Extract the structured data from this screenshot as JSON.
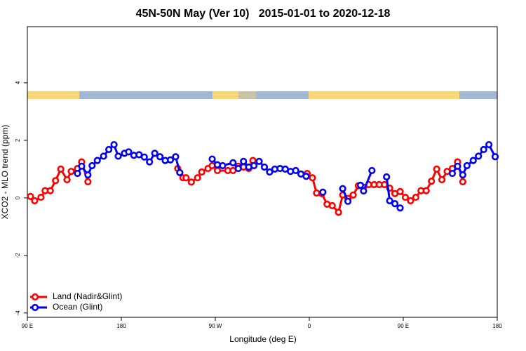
{
  "chart_data": {
    "type": "line",
    "title": "45N-50N May (Ver 10)   2015-01-01 to 2020-12-18",
    "x_label": "Longitude (deg E)",
    "y_label": "XCO2 - MLO trend (ppm)",
    "xlim": [
      90,
      540
    ],
    "xticks": [
      {
        "value": 90,
        "label": "90 E"
      },
      {
        "value": 180,
        "label": "180"
      },
      {
        "value": 270,
        "label": "90 W"
      },
      {
        "value": 360,
        "label": "0"
      },
      {
        "value": 450,
        "label": "90 E"
      },
      {
        "value": 540,
        "label": "180"
      }
    ],
    "ylim": [
      -4.15,
      5.95
    ],
    "yticks": [
      -4,
      -2,
      0,
      2,
      4
    ],
    "legend": "bottom left",
    "series": [
      {
        "name": "Land (Nadir&Glint)",
        "color": "#ff0000",
        "x": [
          93,
          97,
          103,
          107,
          112,
          117,
          122,
          128,
          132,
          138,
          142,
          148,
          null,
          234,
          239,
          242,
          247,
          253,
          257,
          263,
          267,
          272,
          282,
          287,
          292,
          297,
          302,
          306,
          null,
          358,
          363,
          367,
          372,
          377,
          382,
          388,
          392,
          397,
          402,
          407,
          412,
          417,
          422,
          427,
          432,
          437,
          442,
          447,
          452,
          457,
          462,
          467,
          472,
          477,
          482,
          487,
          492,
          497,
          502,
          507
        ],
        "values": [
          0.05,
          -0.1,
          0.02,
          0.25,
          0.25,
          0.6,
          1.0,
          0.63,
          0.92,
          1.02,
          1.25,
          0.56,
          null,
          1.02,
          0.7,
          0.7,
          0.55,
          0.7,
          0.9,
          1.02,
          1.12,
          0.95,
          0.95,
          0.95,
          1.1,
          1.07,
          1.02,
          1.3,
          null,
          0.85,
          0.7,
          0.17,
          0.15,
          -0.22,
          -0.27,
          -0.5,
          0.1,
          -0.02,
          0.1,
          0.42,
          0.37,
          0.46,
          0.46,
          0.46,
          0.46,
          0.34,
          0.15,
          0.22,
          0.02,
          -0.1,
          0.02,
          0.25,
          0.25,
          0.58,
          1.0,
          0.63,
          0.92,
          1.02,
          1.25,
          0.56
        ]
      },
      {
        "name": "Ocean (Glint)",
        "color": "#0000ee",
        "x": [
          138,
          142,
          148,
          152,
          157,
          163,
          168,
          173,
          177,
          183,
          187,
          192,
          197,
          202,
          207,
          212,
          217,
          222,
          227,
          232,
          236,
          null,
          267,
          272,
          277,
          287,
          292,
          297,
          302,
          307,
          312,
          317,
          322,
          327,
          332,
          337,
          342,
          347,
          352,
          357,
          null,
          373,
          null,
          392,
          397,
          null,
          409,
          412,
          420,
          null,
          434,
          437,
          442,
          447,
          null,
          497,
          502,
          507,
          511,
          517,
          522,
          527,
          532,
          538
        ],
        "values": [
          0.85,
          1.1,
          0.8,
          1.12,
          1.3,
          1.45,
          1.68,
          1.85,
          1.45,
          1.55,
          1.6,
          1.48,
          1.5,
          1.42,
          1.25,
          1.55,
          1.43,
          1.3,
          1.32,
          1.43,
          0.88,
          null,
          1.35,
          1.15,
          1.12,
          1.22,
          1.02,
          1.27,
          1.07,
          1.12,
          1.27,
          1.07,
          0.9,
          1.0,
          1.02,
          1.0,
          0.92,
          0.95,
          0.83,
          0.75,
          null,
          0.2,
          null,
          0.32,
          -0.12,
          null,
          0.44,
          0.24,
          0.95,
          null,
          0.73,
          -0.1,
          -0.2,
          -0.35,
          null,
          0.85,
          1.1,
          0.8,
          1.12,
          1.3,
          1.45,
          1.68,
          1.85,
          1.43
        ]
      }
    ]
  }
}
